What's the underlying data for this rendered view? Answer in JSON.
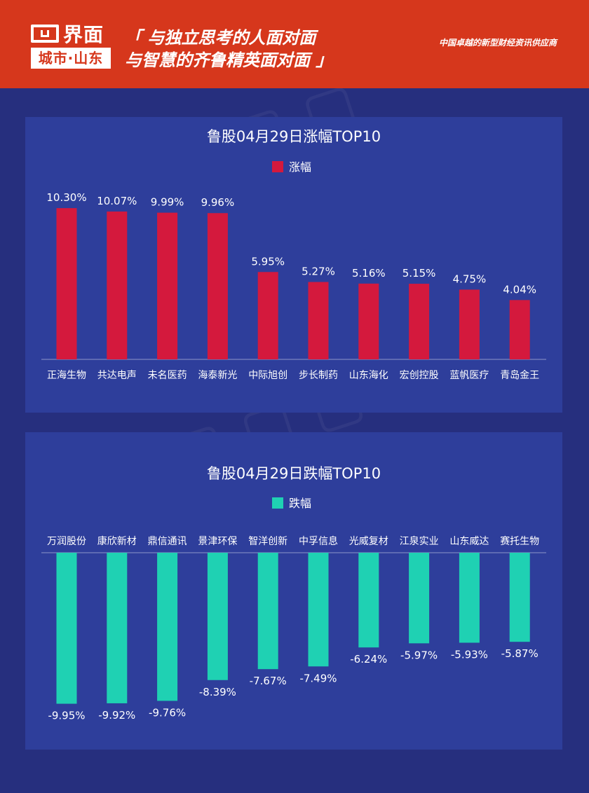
{
  "header": {
    "logo_main": "界面",
    "logo_sub": "城市·山东",
    "slogan_line1": "「 与独立思考的人面对面",
    "slogan_line2": "与智慧的齐鲁精英面对面 」",
    "tagline": "中国卓越的新型财经资讯供应商"
  },
  "colors": {
    "rise": "#d4193d",
    "fall": "#1fd1b3",
    "panel": "#2e3e9b",
    "background": "#262f7e",
    "header": "#d6371c"
  },
  "chart_data": [
    {
      "type": "bar",
      "title": "鲁股04月29日涨幅TOP10",
      "legend_position": "top-center",
      "grid": false,
      "categories": [
        "正海生物",
        "共达电声",
        "未名医药",
        "海泰新光",
        "中际旭创",
        "步长制药",
        "山东海化",
        "宏创控股",
        "蓝帆医疗",
        "青岛金王"
      ],
      "series": [
        {
          "name": "涨幅",
          "values": [
            10.3,
            10.07,
            9.99,
            9.96,
            5.95,
            5.27,
            5.16,
            5.15,
            4.75,
            4.04
          ]
        }
      ],
      "data_labels": [
        "10.30%",
        "10.07%",
        "9.99%",
        "9.96%",
        "5.95%",
        "5.27%",
        "5.16%",
        "5.15%",
        "4.75%",
        "4.04%"
      ],
      "ylim": [
        0,
        12.5
      ]
    },
    {
      "type": "bar",
      "title": "鲁股04月29日跌幅TOP10",
      "legend_position": "top-center",
      "grid": false,
      "categories": [
        "万润股份",
        "康欣新材",
        "鼎信通讯",
        "景津环保",
        "智洋创新",
        "中孚信息",
        "光威复材",
        "江泉实业",
        "山东威达",
        "赛托生物"
      ],
      "series": [
        {
          "name": "跌幅",
          "values": [
            -9.95,
            -9.92,
            -9.76,
            -8.39,
            -7.67,
            -7.49,
            -6.24,
            -5.97,
            -5.93,
            -5.87
          ]
        }
      ],
      "data_labels": [
        "-9.95%",
        "-9.92%",
        "-9.76%",
        "-8.39%",
        "-7.67%",
        "-7.49%",
        "-6.24%",
        "-5.97%",
        "-5.93%",
        "-5.87%"
      ],
      "ylim": [
        -10.8,
        0
      ]
    }
  ]
}
